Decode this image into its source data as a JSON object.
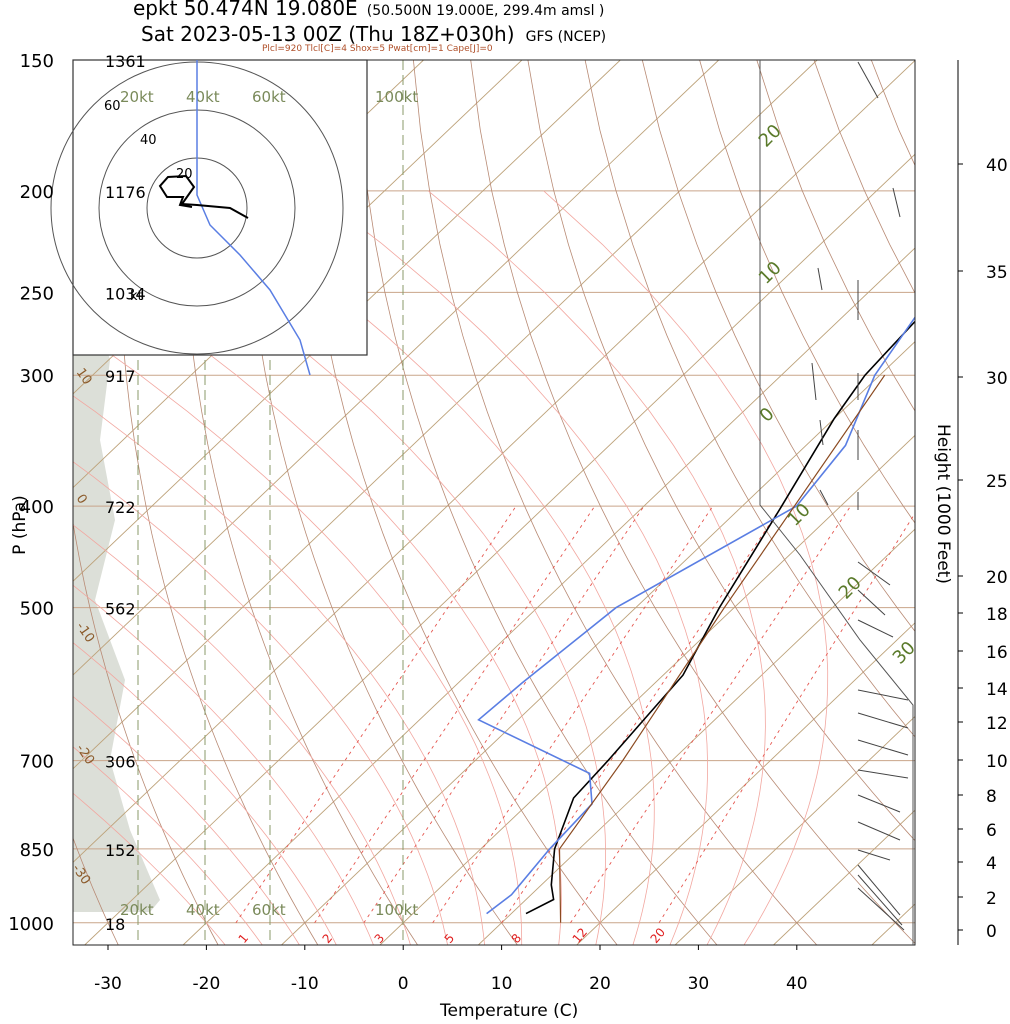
{
  "header": {
    "station": "epkt 50.474N 19.080E",
    "gridpoint": "(50.500N 19.000E, 299.4m amsl )",
    "run": "Sat 2023-05-13 00Z (Thu 18Z+030h)",
    "model": "GFS (NCEP)",
    "params": "Plcl=920 Tlcl[C]=4 Shox=5 Pwat[cm]=1 Cape[J]=0"
  },
  "chart_data": {
    "type": "line",
    "xlabel": "Temperature (C)",
    "ylabel": "P (hPa)",
    "y2label": "Height (1000 Feet)",
    "xlim": [
      -33,
      46
    ],
    "ylim": [
      1050,
      150
    ],
    "xticks": [
      -30,
      -20,
      -10,
      0,
      10,
      20,
      30,
      40
    ],
    "pticks": [
      {
        "p": 150,
        "label": "150",
        "height": "1361"
      },
      {
        "p": 200,
        "label": "200",
        "height": "1176"
      },
      {
        "p": 250,
        "label": "250",
        "height": "1034"
      },
      {
        "p": 300,
        "label": "300",
        "height": "917"
      },
      {
        "p": 400,
        "label": "400",
        "height": "722"
      },
      {
        "p": 500,
        "label": "500",
        "height": "562"
      },
      {
        "p": 700,
        "label": "700",
        "height": "306"
      },
      {
        "p": 850,
        "label": "850",
        "height": "152"
      },
      {
        "p": 1000,
        "label": "1000",
        "height": "18"
      }
    ],
    "height_ticks": [
      "0",
      "2",
      "4",
      "6",
      "8",
      "10",
      "12",
      "14",
      "16",
      "18",
      "20",
      "25",
      "30",
      "35",
      "40"
    ],
    "series": [
      {
        "name": "Temperature",
        "color": "#000000",
        "points": [
          [
            11.5,
            980
          ],
          [
            12.8,
            950
          ],
          [
            11.0,
            920
          ],
          [
            7.5,
            850
          ],
          [
            4.0,
            760
          ],
          [
            3.5,
            700
          ],
          [
            2.0,
            580
          ],
          [
            -1.5,
            500
          ],
          [
            -6.0,
            400
          ],
          [
            -10.0,
            330
          ],
          [
            -11.5,
            300
          ],
          [
            -12.5,
            250
          ],
          [
            -2.5,
            200
          ],
          [
            4.0,
            160
          ],
          [
            5.5,
            150
          ]
        ]
      },
      {
        "name": "Dewpoint",
        "color": "#5a7ee3",
        "points": [
          [
            7.5,
            980
          ],
          [
            8.0,
            940
          ],
          [
            7.0,
            850
          ],
          [
            6.5,
            770
          ],
          [
            3.0,
            720
          ],
          [
            -14.0,
            640
          ],
          [
            -13.5,
            590
          ],
          [
            -12.0,
            500
          ],
          [
            -4.5,
            400
          ],
          [
            -6.0,
            350
          ],
          [
            -10.5,
            300
          ],
          [
            -13.5,
            250
          ],
          [
            -20.5,
            200
          ],
          [
            -20.5,
            150
          ]
        ]
      },
      {
        "name": "Parcel",
        "color": "#8b4a20",
        "points": [
          [
            16.0,
            1000
          ],
          [
            8.0,
            850
          ],
          [
            5.0,
            700
          ],
          [
            -1.0,
            500
          ],
          [
            -9.5,
            300
          ]
        ]
      }
    ],
    "isotherm_labels": [
      "20",
      "10",
      "0",
      "10",
      "20",
      "30"
    ],
    "isotherm_label_neg": [
      "10",
      "0",
      "-10",
      "-20",
      "-30"
    ],
    "mixing_ratio_labels": [
      "1",
      "2",
      "3",
      "5",
      "8",
      "12",
      "20"
    ],
    "hodograph": {
      "speed_labels": [
        "20kt",
        "40kt",
        "60kt",
        "100kt"
      ],
      "ring_labels": [
        "20",
        "40",
        "60"
      ],
      "scale_label": "kt"
    }
  }
}
